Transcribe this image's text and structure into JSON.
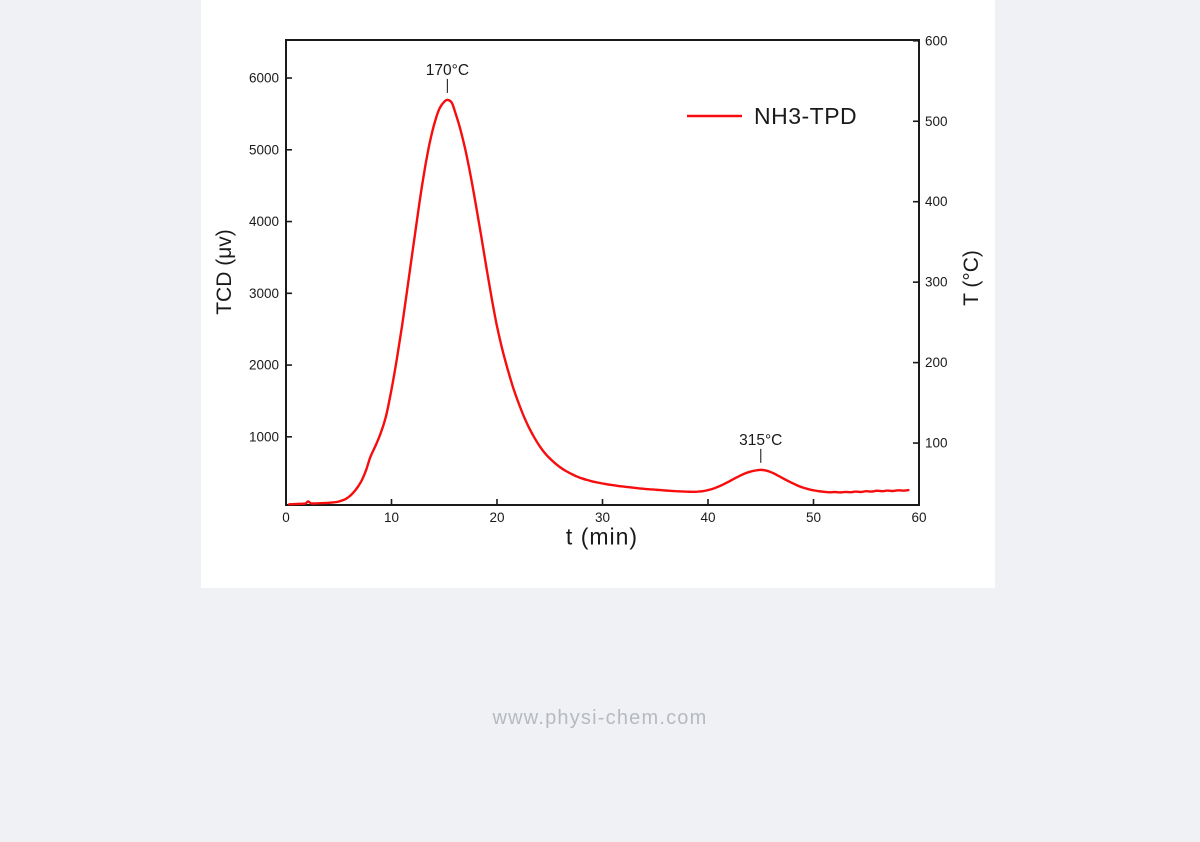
{
  "page": {
    "background_color": "#f0f1f4",
    "panel_background_color": "#ffffff"
  },
  "watermark": {
    "text": "www.physi-chem.com",
    "color": "#b6bac0"
  },
  "chart_data": {
    "type": "line",
    "title": "",
    "xlabel": "t (min)",
    "ylabel_left": "TCD (μv)",
    "ylabel_right": "T (°C)",
    "xlim": [
      0,
      60
    ],
    "ylim_left": [
      50,
      6530
    ],
    "ylim_right": [
      23,
      601
    ],
    "x_ticks": [
      0,
      10,
      20,
      30,
      40,
      50,
      60
    ],
    "y_ticks_left": [
      1000,
      2000,
      3000,
      4000,
      5000,
      6000
    ],
    "y_ticks_right": [
      100,
      200,
      300,
      400,
      500,
      600
    ],
    "grid": false,
    "frame": true,
    "axis_color": "#1a1a1a",
    "legend": {
      "position": "upper-right",
      "entries": [
        {
          "label": "NH3-TPD",
          "color": "#f70d0d"
        }
      ]
    },
    "annotations": [
      {
        "label": "170°C",
        "t": 15.3,
        "tcd": 5695
      },
      {
        "label": "315°C",
        "t": 45.0,
        "tcd": 540
      }
    ],
    "series": [
      {
        "name": "NH3-TPD",
        "color": "#f70d0d",
        "x_unit": "min",
        "y_unit": "μv",
        "points": [
          [
            0.3,
            60
          ],
          [
            1,
            66
          ],
          [
            1.8,
            70
          ],
          [
            2.1,
            100
          ],
          [
            2.4,
            72
          ],
          [
            3,
            74
          ],
          [
            3.6,
            77
          ],
          [
            4.2,
            82
          ],
          [
            4.8,
            92
          ],
          [
            5.2,
            108
          ],
          [
            5.6,
            130
          ],
          [
            6,
            168
          ],
          [
            6.4,
            225
          ],
          [
            6.8,
            300
          ],
          [
            7.2,
            400
          ],
          [
            7.6,
            540
          ],
          [
            8,
            720
          ],
          [
            8.5,
            880
          ],
          [
            9,
            1060
          ],
          [
            9.5,
            1300
          ],
          [
            10,
            1660
          ],
          [
            10.5,
            2080
          ],
          [
            11,
            2550
          ],
          [
            11.5,
            3060
          ],
          [
            12,
            3590
          ],
          [
            12.5,
            4110
          ],
          [
            13,
            4600
          ],
          [
            13.5,
            5010
          ],
          [
            14,
            5330
          ],
          [
            14.5,
            5560
          ],
          [
            15,
            5670
          ],
          [
            15.3,
            5695
          ],
          [
            15.7,
            5660
          ],
          [
            16,
            5540
          ],
          [
            16.5,
            5300
          ],
          [
            17,
            5000
          ],
          [
            17.5,
            4640
          ],
          [
            18,
            4230
          ],
          [
            18.5,
            3800
          ],
          [
            19,
            3360
          ],
          [
            19.5,
            2930
          ],
          [
            20,
            2540
          ],
          [
            20.5,
            2220
          ],
          [
            21,
            1950
          ],
          [
            21.5,
            1700
          ],
          [
            22,
            1490
          ],
          [
            22.5,
            1300
          ],
          [
            23,
            1140
          ],
          [
            23.5,
            1000
          ],
          [
            24,
            880
          ],
          [
            24.5,
            780
          ],
          [
            25,
            700
          ],
          [
            25.5,
            632
          ],
          [
            26,
            574
          ],
          [
            26.5,
            526
          ],
          [
            27,
            486
          ],
          [
            27.5,
            452
          ],
          [
            28,
            424
          ],
          [
            28.5,
            400
          ],
          [
            29,
            380
          ],
          [
            29.5,
            364
          ],
          [
            30,
            350
          ],
          [
            30.5,
            337
          ],
          [
            31,
            326
          ],
          [
            31.5,
            315
          ],
          [
            32,
            306
          ],
          [
            32.5,
            298
          ],
          [
            33,
            290
          ],
          [
            33.5,
            282
          ],
          [
            34,
            275
          ],
          [
            34.5,
            269
          ],
          [
            35,
            263
          ],
          [
            35.5,
            257
          ],
          [
            36,
            252
          ],
          [
            36.5,
            247
          ],
          [
            37,
            243
          ],
          [
            37.5,
            239
          ],
          [
            38,
            236
          ],
          [
            38.5,
            234
          ],
          [
            39,
            236
          ],
          [
            39.5,
            243
          ],
          [
            40,
            257
          ],
          [
            40.5,
            278
          ],
          [
            41,
            306
          ],
          [
            41.5,
            340
          ],
          [
            42,
            378
          ],
          [
            42.5,
            418
          ],
          [
            43,
            456
          ],
          [
            43.5,
            489
          ],
          [
            44,
            514
          ],
          [
            44.5,
            531
          ],
          [
            45,
            540
          ],
          [
            45.4,
            533
          ],
          [
            45.8,
            517
          ],
          [
            46.2,
            493
          ],
          [
            46.6,
            463
          ],
          [
            47,
            430
          ],
          [
            47.5,
            392
          ],
          [
            48,
            355
          ],
          [
            48.5,
            321
          ],
          [
            49,
            293
          ],
          [
            49.5,
            271
          ],
          [
            50,
            255
          ],
          [
            50.5,
            243
          ],
          [
            51,
            234
          ],
          [
            51.5,
            227
          ],
          [
            52,
            231
          ],
          [
            52.5,
            225
          ],
          [
            53,
            233
          ],
          [
            53.5,
            228
          ],
          [
            54,
            237
          ],
          [
            54.5,
            231
          ],
          [
            55,
            243
          ],
          [
            55.5,
            237
          ],
          [
            56,
            249
          ],
          [
            56.5,
            242
          ],
          [
            57,
            251
          ],
          [
            57.5,
            245
          ],
          [
            58,
            255
          ],
          [
            58.5,
            249
          ],
          [
            59,
            257
          ]
        ]
      }
    ]
  }
}
